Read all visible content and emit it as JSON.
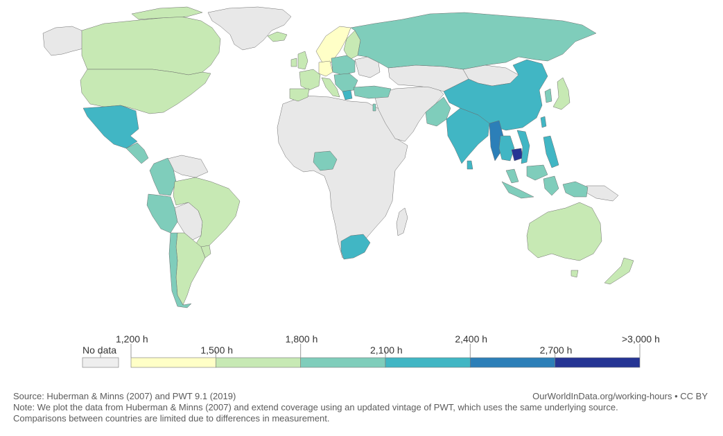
{
  "legend": {
    "no_data_label": "No data",
    "no_data_color": "#eeeeee",
    "bins": [
      {
        "color": "#ffffc7",
        "min": 1200,
        "max": 1500
      },
      {
        "color": "#c7e9b4",
        "min": 1500,
        "max": 1800
      },
      {
        "color": "#7fcdbb",
        "min": 1800,
        "max": 2100
      },
      {
        "color": "#41b6c4",
        "min": 2100,
        "max": 2400
      },
      {
        "color": "#2c7fb8",
        "min": 2400,
        "max": 2700
      },
      {
        "color": "#253494",
        "min": 2700,
        "max": 3000
      }
    ],
    "tick_labels": [
      "1,200 h",
      "1,500 h",
      "1,800 h",
      "2,100 h",
      "2,400 h",
      "2,700 h",
      ">3,000 h"
    ]
  },
  "footer": {
    "source": "Source: Huberman & Minns (2007) and PWT 9.1 (2019)",
    "credit": "OurWorldInData.org/working-hours • CC BY",
    "note_line1": "Note: We plot the data from Huberman & Minns (2007) and extend coverage using an updated vintage of PWT, which uses the same underlying source.",
    "note_line2": "Comparisons between countries are limited due to differences in measurement."
  }
}
